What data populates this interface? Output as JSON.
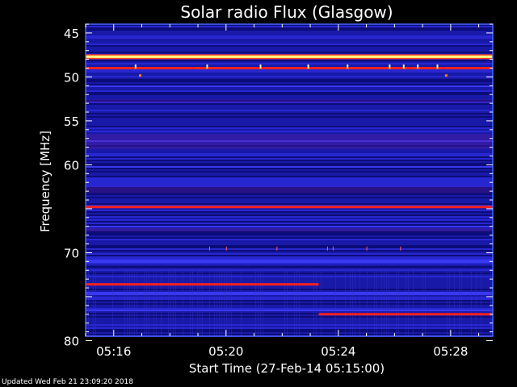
{
  "chart_data": {
    "type": "heatmap",
    "title": "Solar radio Flux (Glasgow)",
    "xlabel": "Start Time (27-Feb-14 05:15:00)",
    "ylabel": "Frequency [MHz]",
    "x_ticks": [
      "05:16",
      "05:20",
      "05:24",
      "05:28"
    ],
    "x_tick_minutes": [
      1,
      5,
      9,
      13
    ],
    "x_range_minutes": [
      0,
      14.5
    ],
    "y_ticks": [
      45,
      50,
      55,
      60,
      65,
      70,
      75,
      80
    ],
    "y_tick_labels": [
      "45",
      "50",
      "55",
      "60",
      "",
      "70",
      "",
      "80"
    ],
    "y_range": [
      44,
      79.5
    ],
    "y_inverted": true,
    "colors": {
      "background": "#1a1aa8",
      "dark": "#0a0a70",
      "mid": "#2a2ad8",
      "bright": "#4040ff",
      "band": "#ff2020",
      "hot": "#ffff80",
      "frame": "#4a66ff"
    },
    "horizontal_bands": [
      {
        "freq": 47.7,
        "color": "#ffd080",
        "strength": 1.0
      },
      {
        "freq": 49.0,
        "color": "#ff2020",
        "strength": 0.8
      },
      {
        "freq": 64.8,
        "color": "#ff2020",
        "strength": 0.9
      }
    ],
    "interference_segments": [
      {
        "freq_start": 73.6,
        "freq_end": 73.8,
        "x_start": 0,
        "x_end": 8.3,
        "color": "#ff2020"
      },
      {
        "freq_start": 77.0,
        "freq_end": 77.2,
        "x_start": 8.3,
        "x_end": 14.5,
        "color": "#ff2020"
      }
    ]
  },
  "footer": {
    "text": "Updated Wed Feb 21 23:09:20 2018"
  }
}
